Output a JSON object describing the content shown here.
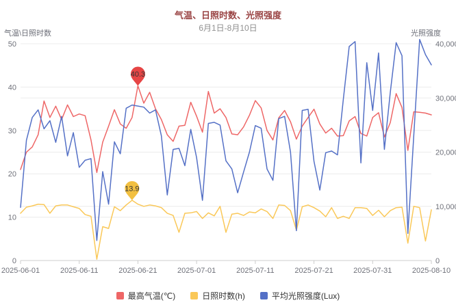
{
  "title": "气温、日照时数、光照强度",
  "subtitle": "6月1日-8月10日",
  "chart_data": {
    "type": "line",
    "grid": true,
    "legend_position": "bottom",
    "left_axis": {
      "name": "气温\\日照时数",
      "min": 0,
      "max": 50,
      "ticks": [
        0,
        10,
        20,
        30,
        40,
        50
      ]
    },
    "right_axis": {
      "name": "光照强度",
      "min": 0,
      "max": 40000,
      "ticks": [
        0,
        10000,
        20000,
        30000,
        40000
      ],
      "tick_labels": [
        "0",
        "10,000",
        "20,000",
        "30,000",
        "40,000"
      ]
    },
    "x_tick_labels": [
      "2025-06-01",
      "2025-06-11",
      "2025-06-21",
      "2025-07-01",
      "2025-07-11",
      "2025-07-21",
      "2025-07-31",
      "2025-08-10"
    ],
    "x_tick_indices": [
      0,
      10,
      20,
      30,
      40,
      50,
      60,
      70
    ],
    "x": [
      "2025-06-01",
      "2025-06-02",
      "2025-06-03",
      "2025-06-04",
      "2025-06-05",
      "2025-06-06",
      "2025-06-07",
      "2025-06-08",
      "2025-06-09",
      "2025-06-10",
      "2025-06-11",
      "2025-06-12",
      "2025-06-13",
      "2025-06-14",
      "2025-06-15",
      "2025-06-16",
      "2025-06-17",
      "2025-06-18",
      "2025-06-19",
      "2025-06-20",
      "2025-06-21",
      "2025-06-22",
      "2025-06-23",
      "2025-06-24",
      "2025-06-25",
      "2025-06-26",
      "2025-06-27",
      "2025-06-28",
      "2025-06-29",
      "2025-06-30",
      "2025-07-01",
      "2025-07-02",
      "2025-07-03",
      "2025-07-04",
      "2025-07-05",
      "2025-07-06",
      "2025-07-07",
      "2025-07-08",
      "2025-07-09",
      "2025-07-10",
      "2025-07-11",
      "2025-07-12",
      "2025-07-13",
      "2025-07-14",
      "2025-07-15",
      "2025-07-16",
      "2025-07-17",
      "2025-07-18",
      "2025-07-19",
      "2025-07-20",
      "2025-07-21",
      "2025-07-22",
      "2025-07-23",
      "2025-07-24",
      "2025-07-25",
      "2025-07-26",
      "2025-07-27",
      "2025-07-28",
      "2025-07-29",
      "2025-07-30",
      "2025-07-31",
      "2025-08-01",
      "2025-08-02",
      "2025-08-03",
      "2025-08-04",
      "2025-08-05",
      "2025-08-06",
      "2025-08-07",
      "2025-08-08",
      "2025-08-09",
      "2025-08-10"
    ],
    "series": [
      {
        "id": "temperature",
        "name": "最高气温(℃)",
        "color": "#ee6666",
        "axis": "left",
        "values": [
          21,
          25,
          26.2,
          29,
          36.8,
          33,
          35.6,
          32.5,
          35.9,
          33.2,
          33.8,
          33.4,
          27.8,
          20.3,
          27.3,
          31,
          34.8,
          31.5,
          30.5,
          33,
          40.3,
          36.3,
          38.8,
          35,
          32.5,
          29,
          27.5,
          31,
          31.2,
          36.5,
          33.3,
          29.6,
          39,
          34,
          35,
          33,
          29.2,
          29,
          30.8,
          33.5,
          36.9,
          35.2,
          30,
          27.8,
          32.9,
          34.6,
          32,
          28,
          31,
          33,
          34.9,
          31.5,
          29.4,
          30.5,
          28.7,
          28.8,
          32.2,
          33.2,
          29.3,
          28.7,
          33,
          34.1,
          28.5,
          31.8,
          38.5,
          35.3,
          25.4,
          34.3,
          34.2,
          34,
          33.6
        ]
      },
      {
        "id": "sunshine",
        "name": "日照时数(h)",
        "color": "#fac858",
        "axis": "left",
        "values": [
          10.9,
          12.3,
          12.6,
          13,
          12.9,
          10.9,
          12.6,
          12.8,
          12.8,
          12.4,
          12,
          10.6,
          10.2,
          0.3,
          7.8,
          7.4,
          12.4,
          11.5,
          12.8,
          13.9,
          13,
          12.5,
          12.8,
          12.6,
          12.2,
          10.9,
          10.4,
          6.5,
          10.9,
          11,
          11.3,
          9.7,
          11,
          10.3,
          12.5,
          6.5,
          10.7,
          10.9,
          10.4,
          11.2,
          11,
          11.9,
          11.3,
          9.7,
          12.8,
          12.7,
          11.5,
          7,
          12.4,
          12.8,
          12.2,
          11.4,
          10.1,
          12.2,
          9.7,
          10.2,
          9.7,
          12.2,
          12.2,
          12,
          10.4,
          11.6,
          10.1,
          11.5,
          12.2,
          12.3,
          4,
          12.5,
          12.2,
          4.5,
          11.7
        ]
      },
      {
        "id": "lux",
        "name": "平均光照强度(Lux)",
        "color": "#5470c6",
        "axis": "right",
        "values": [
          9800,
          22200,
          26400,
          27800,
          24300,
          25800,
          21800,
          26600,
          19300,
          23600,
          17200,
          18500,
          18800,
          3700,
          16400,
          10400,
          21900,
          19700,
          28100,
          28700,
          28500,
          28300,
          27200,
          27800,
          23000,
          12100,
          20500,
          20700,
          17500,
          24200,
          19000,
          11100,
          25300,
          25500,
          25000,
          18400,
          16900,
          12500,
          16300,
          20000,
          24900,
          24400,
          16900,
          14800,
          26200,
          26600,
          20000,
          5500,
          27700,
          27900,
          18300,
          13000,
          19900,
          20200,
          19500,
          29700,
          39500,
          40400,
          18000,
          36500,
          27700,
          38300,
          20500,
          31000,
          40200,
          37800,
          5000,
          23000,
          40800,
          38000,
          36100
        ]
      }
    ],
    "mark_points": [
      {
        "series_id": "temperature",
        "x_index": 20,
        "value": 40.3,
        "label": "40.3",
        "color": "#e64545"
      },
      {
        "series_id": "sunshine",
        "x_index": 19,
        "value": 13.9,
        "label": "13.9",
        "color": "#f2c041"
      }
    ],
    "style": {
      "grid_color": "#ececec",
      "axis_line_color": "#cccccc",
      "tick_label_color": "#6e7079",
      "mark_label_color": "#333333"
    }
  }
}
